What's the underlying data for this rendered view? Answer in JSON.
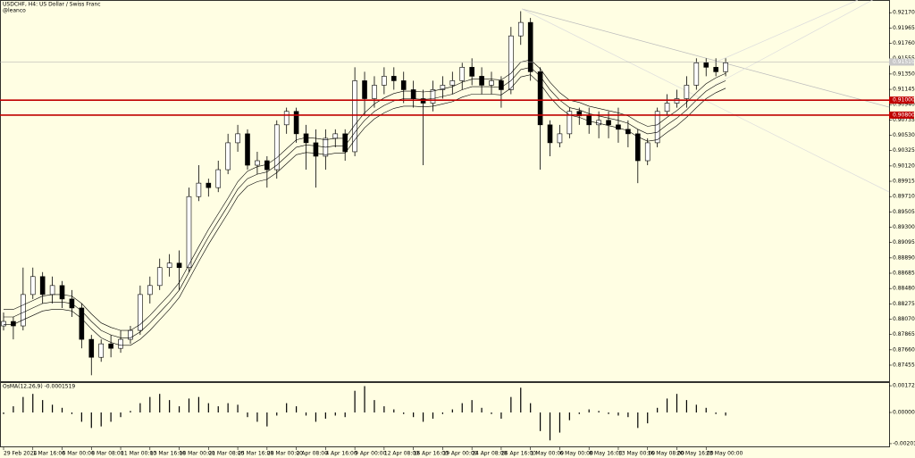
{
  "chart_data": [
    {
      "type": "candlestick",
      "title": "USDCHF, H4: US Dollar / Swiss Franc",
      "subtitle": "@leanco",
      "categories": [
        "29 Feb 2024",
        null,
        null,
        "1 Mar 16:00",
        null,
        null,
        "6 Mar 00:00",
        null,
        null,
        "8 Mar 08:00",
        null,
        null,
        "11 Mar 00:00",
        null,
        null,
        "13 Mar 16:00",
        null,
        null,
        "18 Mar 00:00",
        null,
        null,
        "21 Mar 08:00",
        null,
        null,
        "25 Mar 16:00",
        null,
        null,
        "28 Mar 00:00",
        null,
        null,
        "2 Apr 08:00",
        null,
        null,
        "4 Apr 16:00",
        null,
        null,
        "9 Apr 00:00",
        null,
        null,
        "12 Apr 08:00",
        null,
        null,
        "16 Apr 16:00",
        null,
        null,
        "19 Apr 00:00",
        null,
        null,
        "24 Apr 08:00",
        null,
        null,
        "26 Apr 16:00",
        null,
        null,
        "1 May 00:00",
        null,
        null,
        "6 May 00:00",
        null,
        null,
        "8 May 16:00",
        null,
        null,
        "13 May 00:00",
        null,
        null,
        "16 May 08:00",
        null,
        null,
        "20 May 16:00",
        null,
        null,
        "23 May 00:00",
        null,
        null
      ],
      "open": [
        0.8798,
        0.8804,
        0.8798,
        0.884,
        0.8864,
        0.884,
        0.8852,
        0.8834,
        0.8822,
        0.878,
        0.8756,
        0.8774,
        0.8768,
        0.878,
        0.8792,
        0.884,
        0.8852,
        0.8876,
        0.8882,
        0.8876,
        0.8971,
        0.8989,
        0.8983,
        0.9007,
        0.9043,
        0.9055,
        0.9013,
        0.9019,
        0.9007,
        0.9067,
        0.9085,
        0.9055,
        0.9043,
        0.9025,
        0.9049,
        0.9055,
        0.9031,
        0.9126,
        0.9102,
        0.912,
        0.9132,
        0.9126,
        0.9114,
        0.9102,
        0.9096,
        0.9114,
        0.912,
        0.9126,
        0.9144,
        0.9132,
        0.912,
        0.9126,
        0.9114,
        0.9186,
        0.9204,
        0.9138,
        0.9067,
        0.9043,
        0.9055,
        0.9085,
        0.9079,
        0.9067,
        0.9073,
        0.9067,
        0.9061,
        0.9055,
        0.9019,
        0.9043,
        0.9085,
        0.9096,
        0.9102,
        0.912,
        0.915,
        0.9144,
        0.9138
      ],
      "high": [
        0.8816,
        0.881,
        0.8876,
        0.8876,
        0.887,
        0.8864,
        0.8858,
        0.8846,
        0.8828,
        0.8786,
        0.878,
        0.8786,
        0.8792,
        0.8798,
        0.8852,
        0.8864,
        0.8888,
        0.8894,
        0.8899,
        0.8983,
        0.9013,
        0.8995,
        0.9019,
        0.9055,
        0.9067,
        0.9061,
        0.9031,
        0.9025,
        0.9073,
        0.909,
        0.909,
        0.9067,
        0.9061,
        0.9061,
        0.9061,
        0.9061,
        0.9144,
        0.9138,
        0.9132,
        0.9144,
        0.9144,
        0.9138,
        0.9126,
        0.9114,
        0.9126,
        0.9132,
        0.9138,
        0.915,
        0.9156,
        0.9144,
        0.9138,
        0.9132,
        0.9198,
        0.9219,
        0.921,
        0.9144,
        0.9073,
        0.9067,
        0.909,
        0.909,
        0.909,
        0.9085,
        0.9085,
        0.909,
        0.9073,
        0.9061,
        0.9049,
        0.909,
        0.9108,
        0.9114,
        0.9132,
        0.9156,
        0.9156,
        0.9156,
        0.9156
      ],
      "low": [
        0.8792,
        0.878,
        0.8792,
        0.8834,
        0.8828,
        0.8828,
        0.8822,
        0.881,
        0.8768,
        0.8732,
        0.875,
        0.8756,
        0.8762,
        0.8774,
        0.8786,
        0.8828,
        0.8846,
        0.8864,
        0.8846,
        0.887,
        0.8965,
        0.8971,
        0.8977,
        0.9001,
        0.9031,
        0.9007,
        0.9001,
        0.8983,
        0.8995,
        0.9055,
        0.9043,
        0.9007,
        0.8983,
        0.9007,
        0.9037,
        0.9019,
        0.9025,
        0.9079,
        0.909,
        0.9108,
        0.9114,
        0.9096,
        0.909,
        0.9013,
        0.9085,
        0.9102,
        0.9108,
        0.9114,
        0.912,
        0.9108,
        0.9108,
        0.909,
        0.9108,
        0.9174,
        0.9126,
        0.9007,
        0.9025,
        0.9037,
        0.9049,
        0.9067,
        0.9055,
        0.9049,
        0.9049,
        0.9043,
        0.9037,
        0.8989,
        0.9013,
        0.9037,
        0.9079,
        0.909,
        0.909,
        0.9114,
        0.9132,
        0.9132,
        0.9132
      ],
      "close": [
        0.8804,
        0.8798,
        0.884,
        0.8864,
        0.884,
        0.8852,
        0.8834,
        0.8822,
        0.878,
        0.8756,
        0.8774,
        0.8768,
        0.878,
        0.8792,
        0.884,
        0.8852,
        0.8876,
        0.8882,
        0.8876,
        0.8971,
        0.8989,
        0.8983,
        0.9007,
        0.9043,
        0.9055,
        0.9013,
        0.9019,
        0.9007,
        0.9067,
        0.9085,
        0.9055,
        0.9043,
        0.9025,
        0.9049,
        0.9055,
        0.9031,
        0.9126,
        0.9102,
        0.912,
        0.9132,
        0.9126,
        0.9114,
        0.9102,
        0.9096,
        0.9114,
        0.912,
        0.9126,
        0.9144,
        0.9132,
        0.912,
        0.9126,
        0.9114,
        0.9186,
        0.9204,
        0.9138,
        0.9067,
        0.9043,
        0.9055,
        0.9085,
        0.9079,
        0.9067,
        0.9073,
        0.9067,
        0.9061,
        0.9055,
        0.9019,
        0.9043,
        0.9085,
        0.9096,
        0.9102,
        0.912,
        0.915,
        0.9144,
        0.9138,
        0.915
      ],
      "up_color": "#ffffff",
      "down_color": "#000000",
      "line_color": "#000000",
      "series": [
        {
          "color": "#000000",
          "values": [
            0.882,
            0.882,
            0.8826,
            0.8832,
            0.8838,
            0.884,
            0.884,
            0.8838,
            0.8828,
            0.8814,
            0.8802,
            0.8796,
            0.8792,
            0.8792,
            0.88,
            0.8812,
            0.8826,
            0.884,
            0.8856,
            0.888,
            0.8904,
            0.8927,
            0.8948,
            0.8969,
            0.8991,
            0.9005,
            0.9011,
            0.9014,
            0.9023,
            0.9035,
            0.9047,
            0.905,
            0.9049,
            0.9047,
            0.9049,
            0.9049,
            0.9067,
            0.9083,
            0.9095,
            0.9103,
            0.9109,
            0.9112,
            0.9112,
            0.9111,
            0.9112,
            0.9115,
            0.9118,
            0.9124,
            0.9128,
            0.9128,
            0.9128,
            0.9127,
            0.9136,
            0.9151,
            0.9154,
            0.9142,
            0.9124,
            0.911,
            0.91,
            0.9097,
            0.9092,
            0.9089,
            0.9086,
            0.9083,
            0.9079,
            0.9071,
            0.9065,
            0.9067,
            0.9077,
            0.9086,
            0.9097,
            0.911,
            0.9122,
            0.913,
            0.9136
          ]
        },
        {
          "color": "#000000",
          "values": [
            0.881,
            0.881,
            0.8816,
            0.8822,
            0.8828,
            0.883,
            0.883,
            0.8828,
            0.8818,
            0.8804,
            0.8792,
            0.8786,
            0.8782,
            0.8782,
            0.879,
            0.8802,
            0.8816,
            0.883,
            0.8846,
            0.887,
            0.8894,
            0.8917,
            0.8938,
            0.8959,
            0.8981,
            0.8995,
            0.9001,
            0.9004,
            0.9013,
            0.9025,
            0.9037,
            0.904,
            0.9039,
            0.9037,
            0.9039,
            0.9039,
            0.9057,
            0.9073,
            0.9085,
            0.9093,
            0.9099,
            0.9102,
            0.9102,
            0.9101,
            0.9102,
            0.9105,
            0.9108,
            0.9114,
            0.9118,
            0.9118,
            0.9118,
            0.9117,
            0.9126,
            0.9141,
            0.9144,
            0.9132,
            0.9114,
            0.91,
            0.909,
            0.9087,
            0.9082,
            0.9079,
            0.9076,
            0.9073,
            0.9069,
            0.9061,
            0.9055,
            0.9057,
            0.9067,
            0.9076,
            0.9087,
            0.91,
            0.9112,
            0.912,
            0.9126
          ]
        },
        {
          "color": "#000000",
          "values": [
            0.88,
            0.88,
            0.8806,
            0.8812,
            0.8818,
            0.882,
            0.882,
            0.8818,
            0.8808,
            0.8794,
            0.8782,
            0.8776,
            0.8772,
            0.8772,
            0.878,
            0.8792,
            0.8806,
            0.882,
            0.8836,
            0.886,
            0.8884,
            0.8907,
            0.8928,
            0.8949,
            0.8971,
            0.8985,
            0.8991,
            0.8994,
            0.9003,
            0.9015,
            0.9027,
            0.903,
            0.9029,
            0.9027,
            0.9029,
            0.9029,
            0.9047,
            0.9063,
            0.9075,
            0.9083,
            0.9089,
            0.9092,
            0.9092,
            0.9091,
            0.9092,
            0.9095,
            0.9098,
            0.9104,
            0.9108,
            0.9108,
            0.9108,
            0.9107,
            0.9116,
            0.9131,
            0.9134,
            0.9122,
            0.9104,
            0.909,
            0.908,
            0.9077,
            0.9072,
            0.9069,
            0.9066,
            0.9063,
            0.9059,
            0.9051,
            0.9045,
            0.9047,
            0.9057,
            0.9066,
            0.9077,
            0.909,
            0.9102,
            0.911,
            0.9116
          ]
        }
      ],
      "levels": [
        {
          "value": 0.91,
          "label": "0.91000"
        },
        {
          "value": 0.908,
          "label": "0.90800"
        }
      ],
      "level_color": "#c00000",
      "price_line": {
        "value": 0.9151,
        "label": "0.91510"
      },
      "ylim": [
        0.8724,
        0.9234
      ],
      "yticks": [
        {
          "value": 0.9217,
          "label": "0.92170"
        },
        {
          "value": 0.91965,
          "label": "0.91965"
        },
        {
          "value": 0.9176,
          "label": "0.91760"
        },
        {
          "value": 0.91555,
          "label": "0.91555"
        },
        {
          "value": 0.9135,
          "label": "0.91350"
        },
        {
          "value": 0.91145,
          "label": "0.91145"
        },
        {
          "value": 0.9094,
          "label": "0.90940"
        },
        {
          "value": 0.90735,
          "label": "0.90735"
        },
        {
          "value": 0.9053,
          "label": "0.90530"
        },
        {
          "value": 0.90325,
          "label": "0.90325"
        },
        {
          "value": 0.9012,
          "label": "0.90120"
        },
        {
          "value": 0.89915,
          "label": "0.89915"
        },
        {
          "value": 0.8971,
          "label": "0.89710"
        },
        {
          "value": 0.89505,
          "label": "0.89505"
        },
        {
          "value": 0.893,
          "label": "0.89300"
        },
        {
          "value": 0.89095,
          "label": "0.89095"
        },
        {
          "value": 0.8889,
          "label": "0.88890"
        },
        {
          "value": 0.88685,
          "label": "0.88685"
        },
        {
          "value": 0.8848,
          "label": "0.88480"
        },
        {
          "value": 0.88275,
          "label": "0.88275"
        },
        {
          "value": 0.8807,
          "label": "0.88070"
        },
        {
          "value": 0.87865,
          "label": "0.87865"
        },
        {
          "value": 0.8766,
          "label": "0.87660"
        },
        {
          "value": 0.87455,
          "label": "0.87455"
        }
      ]
    },
    {
      "type": "bar",
      "title": "OsMA(12,26,9) -0.0001519",
      "color": "#000000",
      "values": [
        -0.0001,
        0.0004,
        0.001,
        0.0012,
        0.0008,
        0.0005,
        0.0003,
        -0.0001,
        -0.0006,
        -0.001,
        -0.0009,
        -0.0006,
        -0.0003,
        0.0001,
        0.0006,
        0.001,
        0.0012,
        0.0008,
        0.0004,
        0.0009,
        0.001,
        0.0006,
        0.0004,
        0.0006,
        0.0005,
        -0.0003,
        -0.0006,
        -0.0009,
        -0.0002,
        0.0006,
        0.0004,
        -0.0002,
        -0.0006,
        -0.0004,
        -0.0002,
        -0.0003,
        0.0014,
        0.0017,
        0.0008,
        0.0004,
        0.0002,
        -0.0001,
        -0.0003,
        -0.0006,
        -0.0004,
        -0.0001,
        0.0002,
        0.0006,
        0.0008,
        0.0003,
        -0.0001,
        -0.0004,
        0.001,
        0.0016,
        0.0006,
        -0.0012,
        -0.0018,
        -0.0013,
        -0.0005,
        -0.0001,
        0.0002,
        0.0001,
        -0.0001,
        -0.0002,
        -0.0003,
        -0.001,
        -0.0007,
        0.0003,
        0.0009,
        0.0012,
        0.0008,
        0.0005,
        0.0003,
        -0.0001,
        -0.0002
      ],
      "ylim": [
        -0.00219,
        0.00196
      ],
      "yticks": [
        {
          "value": 0.0017255,
          "label": "0.0017255"
        },
        {
          "value": 0,
          "label": "0.000000"
        },
        {
          "value": -0.0020132,
          "label": "-0.0020132"
        }
      ]
    }
  ]
}
